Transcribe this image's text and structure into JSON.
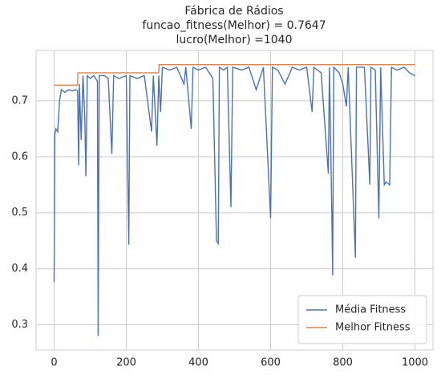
{
  "chart_data": {
    "type": "line",
    "title": [
      "Fábrica de Rádios",
      "funcao_fitness(Melhor) = 0.7647",
      "lucro(Melhor) =1040"
    ],
    "xlim": [
      -50,
      1050
    ],
    "ylim": [
      0.255,
      0.79
    ],
    "xticks": [
      0,
      200,
      400,
      600,
      800,
      1000
    ],
    "yticks": [
      0.3,
      0.4,
      0.5,
      0.6,
      0.7
    ],
    "grid": true,
    "legend": "lower right",
    "series": [
      {
        "name": "Média Fitness",
        "color": "#4c72b0",
        "x": [
          0,
          2,
          5,
          10,
          15,
          20,
          30,
          40,
          50,
          60,
          65,
          68,
          70,
          75,
          80,
          85,
          88,
          92,
          100,
          110,
          120,
          122,
          125,
          140,
          150,
          160,
          165,
          180,
          200,
          207,
          210,
          230,
          250,
          270,
          275,
          285,
          290,
          295,
          300,
          320,
          340,
          360,
          365,
          380,
          385,
          400,
          420,
          440,
          450,
          455,
          458,
          470,
          480,
          490,
          495,
          520,
          540,
          560,
          580,
          600,
          605,
          620,
          640,
          660,
          680,
          700,
          715,
          720,
          740,
          760,
          763,
          770,
          772,
          775,
          790,
          800,
          810,
          815,
          835,
          838,
          860,
          875,
          878,
          890,
          900,
          905,
          915,
          920,
          930,
          935,
          950,
          970,
          985,
          1000
        ],
        "values": [
          0.376,
          0.64,
          0.65,
          0.645,
          0.7,
          0.72,
          0.715,
          0.72,
          0.718,
          0.72,
          0.718,
          0.585,
          0.73,
          0.63,
          0.745,
          0.67,
          0.565,
          0.745,
          0.74,
          0.745,
          0.735,
          0.28,
          0.745,
          0.745,
          0.74,
          0.605,
          0.745,
          0.74,
          0.745,
          0.443,
          0.745,
          0.74,
          0.745,
          0.645,
          0.745,
          0.62,
          0.745,
          0.68,
          0.76,
          0.755,
          0.76,
          0.73,
          0.76,
          0.65,
          0.76,
          0.755,
          0.76,
          0.74,
          0.45,
          0.445,
          0.76,
          0.755,
          0.76,
          0.51,
          0.76,
          0.755,
          0.76,
          0.72,
          0.76,
          0.49,
          0.76,
          0.755,
          0.73,
          0.76,
          0.755,
          0.76,
          0.68,
          0.76,
          0.75,
          0.57,
          0.76,
          0.485,
          0.388,
          0.76,
          0.75,
          0.73,
          0.69,
          0.76,
          0.42,
          0.76,
          0.76,
          0.55,
          0.76,
          0.755,
          0.49,
          0.76,
          0.55,
          0.555,
          0.55,
          0.76,
          0.755,
          0.76,
          0.75,
          0.745
        ]
      },
      {
        "name": "Melhor Fitness",
        "color": "#dd8452",
        "x": [
          0,
          65,
          66,
          290,
          291,
          1000
        ],
        "values": [
          0.728,
          0.728,
          0.75,
          0.75,
          0.7647,
          0.7647
        ]
      }
    ]
  }
}
